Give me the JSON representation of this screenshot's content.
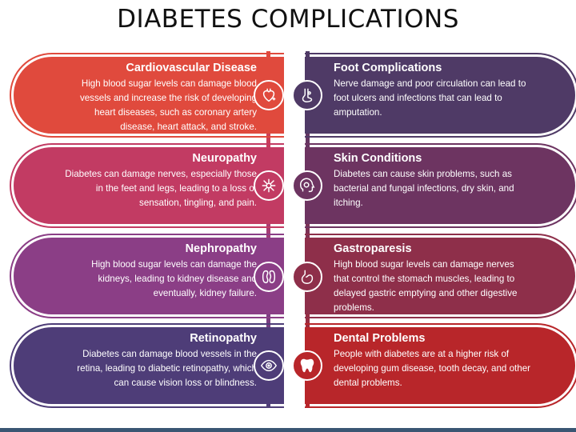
{
  "title": "DIABETES COMPLICATIONS",
  "colors": {
    "cardio": "#e04a3d",
    "neuro": "#c23b63",
    "nephro": "#8b3e86",
    "retino": "#4e3d78",
    "foot": "#4f3a66",
    "skin": "#6d3461",
    "gastro": "#8e2f4a",
    "dental": "#b8262a",
    "bottom_bar": "#3a5673"
  },
  "left": [
    {
      "heading": "Cardiovascular Disease",
      "text": "High blood sugar levels can damage blood vessels and increase the risk of developing heart diseases, such as coronary artery disease, heart attack, and stroke.",
      "icon": "heart-icon"
    },
    {
      "heading": "Neuropathy",
      "text": "Diabetes can damage nerves, especially those in the feet and legs, leading to a loss of sensation, tingling, and pain.",
      "icon": "neuron-icon"
    },
    {
      "heading": "Nephropathy",
      "text": "High blood sugar levels can damage the kidneys, leading to kidney disease and eventually, kidney failure.",
      "icon": "kidney-icon"
    },
    {
      "heading": "Retinopathy",
      "text": "Diabetes can damage blood vessels in the retina, leading to diabetic retinopathy, which can cause vision loss or blindness.",
      "icon": "eye-icon"
    }
  ],
  "right": [
    {
      "heading": "Foot Complications",
      "text": "Nerve damage and poor circulation can lead to foot ulcers and infections that can lead to amputation.",
      "icon": "foot-icon"
    },
    {
      "heading": "Skin Conditions",
      "text": "Diabetes can cause skin problems, such as bacterial and fungal infections, dry skin, and itching.",
      "icon": "face-skin-icon"
    },
    {
      "heading": "Gastroparesis",
      "text": "High blood sugar levels can damage nerves that control the stomach muscles, leading to delayed gastric emptying and other digestive problems.",
      "icon": "stomach-icon"
    },
    {
      "heading": "Dental Problems",
      "text": "People with diabetes are at a higher risk of developing gum disease, tooth decay, and other dental problems.",
      "icon": "tooth-icon"
    }
  ]
}
